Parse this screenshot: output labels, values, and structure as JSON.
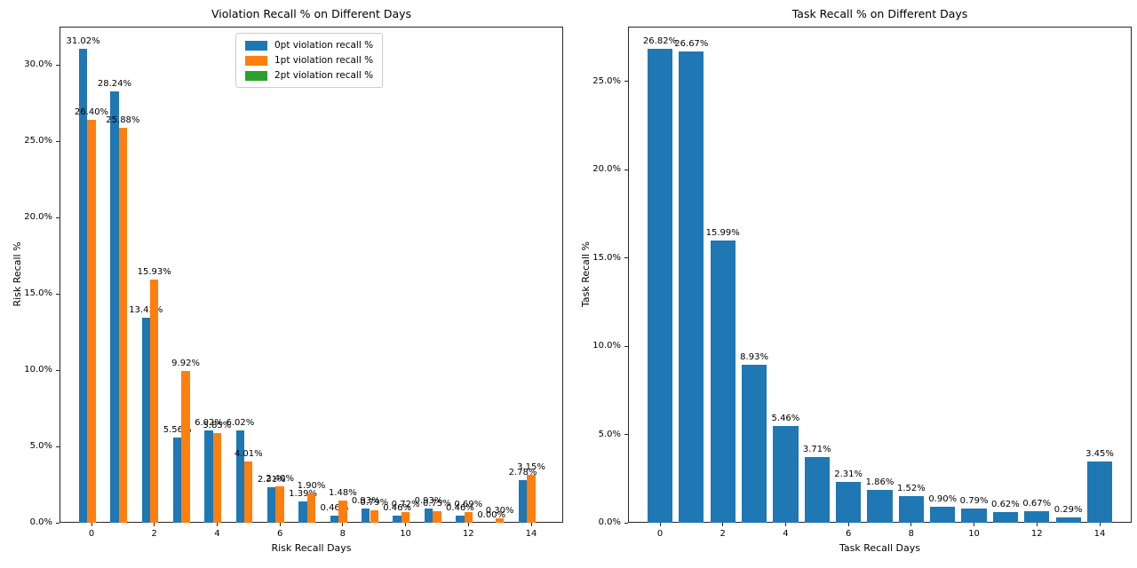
{
  "colors": {
    "bar_blue": "#1f77b4",
    "bar_orange": "#ff7f0e",
    "bar_green": "#2ca02c",
    "spine": "#262626",
    "text": "#000000",
    "legend_border": "#cccccc",
    "background": "#ffffff"
  },
  "chart_data": [
    {
      "type": "bar",
      "title": "Violation Recall % on Different Days",
      "xlabel": "Risk Recall Days",
      "ylabel": "Risk Recall %",
      "categories": [
        0,
        1,
        2,
        3,
        4,
        5,
        6,
        7,
        8,
        9,
        10,
        11,
        12,
        13,
        14
      ],
      "series": [
        {
          "name": "0pt violation recall %",
          "color": "#1f77b4",
          "values": [
            31.02,
            28.24,
            13.43,
            5.56,
            6.02,
            6.02,
            2.31,
            1.39,
            0.46,
            0.93,
            0.46,
            0.93,
            0.46,
            0.0,
            2.78
          ],
          "labels": [
            "31.02%",
            "28.24%",
            "13.43%",
            "5.56%",
            "6.02%",
            "6.02%",
            "2.31%",
            "1.39%",
            "0.46%",
            "0.93%",
            "0.46%",
            "0.93%",
            "0.46%",
            "0.00%",
            "2.78%"
          ]
        },
        {
          "name": "1pt violation recall %",
          "color": "#ff7f0e",
          "values": [
            26.4,
            25.88,
            15.93,
            9.92,
            5.85,
            4.01,
            2.4,
            1.9,
            1.48,
            0.79,
            0.72,
            0.75,
            0.69,
            0.3,
            3.15
          ],
          "labels": [
            "26.40%",
            "25.88%",
            "15.93%",
            "9.92%",
            "5.85%",
            "4.01%",
            "2.40%",
            "1.90%",
            "1.48%",
            "0.79%",
            "0.72%",
            "0.75%",
            "0.69%",
            "0.30%",
            "3.15%"
          ]
        },
        {
          "name": "2pt violation recall %",
          "color": "#2ca02c",
          "values": [
            0,
            0,
            0,
            0,
            0,
            0,
            0,
            0,
            0,
            0,
            0,
            0,
            0,
            0,
            0
          ],
          "labels": null
        }
      ],
      "ylim": [
        0,
        32.5
      ],
      "ytick_values": [
        0,
        5,
        10,
        15,
        20,
        25,
        30
      ],
      "ytick_labels": [
        "0.0%",
        "5.0%",
        "10.0%",
        "15.0%",
        "20.0%",
        "25.0%",
        "30.0%"
      ],
      "xtick_values": [
        0,
        2,
        4,
        6,
        8,
        10,
        12,
        14
      ],
      "xtick_labels": [
        "0",
        "2",
        "4",
        "6",
        "8",
        "10",
        "12",
        "14"
      ],
      "grid": false,
      "legend": {
        "position": "upper center",
        "items": [
          {
            "label": "0pt violation recall %",
            "color": "#1f77b4"
          },
          {
            "label": "1pt violation recall %",
            "color": "#ff7f0e"
          },
          {
            "label": "2pt violation recall %",
            "color": "#2ca02c"
          }
        ]
      }
    },
    {
      "type": "bar",
      "title": "Task Recall % on Different Days",
      "xlabel": "Task Recall Days",
      "ylabel": "Task Recall %",
      "categories": [
        0,
        1,
        2,
        3,
        4,
        5,
        6,
        7,
        8,
        9,
        10,
        11,
        12,
        13,
        14
      ],
      "bar_color": "#1f77b4",
      "values": [
        26.82,
        26.67,
        15.99,
        8.93,
        5.46,
        3.71,
        2.31,
        1.86,
        1.52,
        0.9,
        0.79,
        0.62,
        0.67,
        0.29,
        3.45
      ],
      "value_labels": [
        "26.82%",
        "26.67%",
        "15.99%",
        "8.93%",
        "5.46%",
        "3.71%",
        "2.31%",
        "1.86%",
        "1.52%",
        "0.90%",
        "0.79%",
        "0.62%",
        "0.67%",
        "0.29%",
        "3.45%"
      ],
      "ylim": [
        0,
        28.1
      ],
      "ytick_values": [
        0,
        5,
        10,
        15,
        20,
        25
      ],
      "ytick_labels": [
        "0.0%",
        "5.0%",
        "10.0%",
        "15.0%",
        "20.0%",
        "25.0%"
      ],
      "xtick_values": [
        0,
        2,
        4,
        6,
        8,
        10,
        12,
        14
      ],
      "xtick_labels": [
        "0",
        "2",
        "4",
        "6",
        "8",
        "10",
        "12",
        "14"
      ],
      "grid": false
    }
  ]
}
